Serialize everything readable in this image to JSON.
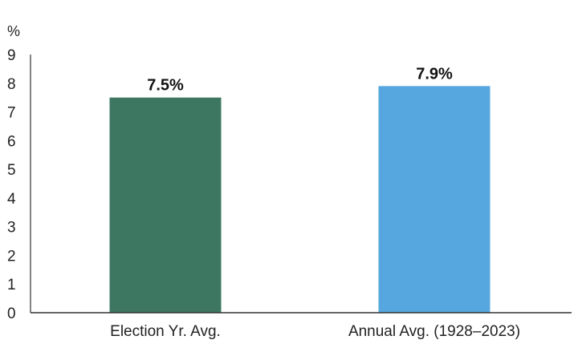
{
  "chart_data": {
    "type": "bar",
    "categories": [
      "Election Yr. Avg.",
      "Annual Avg. (1928–2023)"
    ],
    "values": [
      7.5,
      7.9
    ],
    "data_labels": [
      "7.5%",
      "7.9%"
    ],
    "colors": [
      "#3d7762",
      "#56a7df"
    ],
    "y_unit": "%",
    "ylim": [
      0,
      9
    ],
    "yticks": [
      "0",
      "1",
      "2",
      "3",
      "4",
      "5",
      "6",
      "7",
      "8",
      "9"
    ],
    "grid": false,
    "legend": "none"
  }
}
